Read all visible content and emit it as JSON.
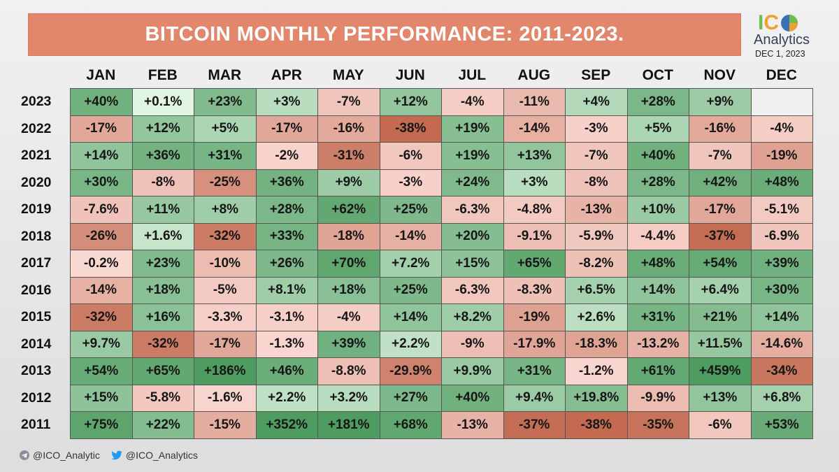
{
  "title": "BITCOIN MONTHLY PERFORMANCE: 2011-2023.",
  "logo": {
    "letters": [
      "I",
      "C",
      "O"
    ],
    "letter_colors": [
      "#6fbf4a",
      "#f0a030",
      "#3b6fb6"
    ],
    "name": "Analytics",
    "date": "DEC 1, 2023"
  },
  "footer": {
    "telegram": "@ICO_Analytic",
    "twitter": "@ICO_Analytics"
  },
  "colors": {
    "positive": "#1f8a3a",
    "negative": "#d9532b",
    "empty": "#f0f0f0"
  },
  "chart_data": {
    "type": "heatmap",
    "title": "BITCOIN MONTHLY PERFORMANCE: 2011-2023.",
    "columns": [
      "JAN",
      "FEB",
      "MAR",
      "APR",
      "MAY",
      "JUN",
      "JUL",
      "AUG",
      "SEP",
      "OCT",
      "NOV",
      "DEC"
    ],
    "rows": [
      {
        "year": "2023",
        "labels": [
          "+40%",
          "+0.1%",
          "+23%",
          "+3%",
          "-7%",
          "+12%",
          "-4%",
          "-11%",
          "+4%",
          "+28%",
          "+9%",
          ""
        ],
        "values": [
          40,
          0.1,
          23,
          3,
          -7,
          12,
          -4,
          -11,
          4,
          28,
          9,
          null
        ]
      },
      {
        "year": "2022",
        "labels": [
          "-17%",
          "+12%",
          "+5%",
          "-17%",
          "-16%",
          "-38%",
          "+19%",
          "-14%",
          "-3%",
          "+5%",
          "-16%",
          "-4%"
        ],
        "values": [
          -17,
          12,
          5,
          -17,
          -16,
          -38,
          19,
          -14,
          -3,
          5,
          -16,
          -4
        ]
      },
      {
        "year": "2021",
        "labels": [
          "+14%",
          "+36%",
          "+31%",
          "-2%",
          "-31%",
          "-6%",
          "+19%",
          "+13%",
          "-7%",
          "+40%",
          "-7%",
          "-19%"
        ],
        "values": [
          14,
          36,
          31,
          -2,
          -31,
          -6,
          19,
          13,
          -7,
          40,
          -7,
          -19
        ]
      },
      {
        "year": "2020",
        "labels": [
          "+30%",
          "-8%",
          "-25%",
          "+36%",
          "+9%",
          "-3%",
          "+24%",
          "+3%",
          "-8%",
          "+28%",
          "+42%",
          "+48%"
        ],
        "values": [
          30,
          -8,
          -25,
          36,
          9,
          -3,
          24,
          3,
          -8,
          28,
          42,
          48
        ]
      },
      {
        "year": "2019",
        "labels": [
          "-7.6%",
          "+11%",
          "+8%",
          "+28%",
          "+62%",
          "+25%",
          "-6.3%",
          "-4.8%",
          "-13%",
          "+10%",
          "-17%",
          "-5.1%"
        ],
        "values": [
          -7.6,
          11,
          8,
          28,
          62,
          25,
          -6.3,
          -4.8,
          -13,
          10,
          -17,
          -5.1
        ]
      },
      {
        "year": "2018",
        "labels": [
          "-26%",
          "+1.6%",
          "-32%",
          "+33%",
          "-18%",
          "-14%",
          "+20%",
          "-9.1%",
          "-5.9%",
          "-4.4%",
          "-37%",
          "-6.9%"
        ],
        "values": [
          -26,
          1.6,
          -32,
          33,
          -18,
          -14,
          20,
          -9.1,
          -5.9,
          -4.4,
          -37,
          -6.9
        ]
      },
      {
        "year": "2017",
        "labels": [
          "-0.2%",
          "+23%",
          "-10%",
          "+26%",
          "+70%",
          "+7.2%",
          "+15%",
          "+65%",
          "-8.2%",
          "+48%",
          "+54%",
          "+39%"
        ],
        "values": [
          -0.2,
          23,
          -10,
          26,
          70,
          7.2,
          15,
          65,
          -8.2,
          48,
          54,
          39
        ]
      },
      {
        "year": "2016",
        "labels": [
          "-14%",
          "+18%",
          "-5%",
          "+8.1%",
          "+18%",
          "+25%",
          "-6.3%",
          "-8.3%",
          "+6.5%",
          "+14%",
          "+6.4%",
          "+30%"
        ],
        "values": [
          -14,
          18,
          -5,
          8.1,
          18,
          25,
          -6.3,
          -8.3,
          6.5,
          14,
          6.4,
          30
        ]
      },
      {
        "year": "2015",
        "labels": [
          "-32%",
          "+16%",
          "-3.3%",
          "-3.1%",
          "-4%",
          "+14%",
          "+8.2%",
          "-19%",
          "+2.6%",
          "+31%",
          "+21%",
          "+14%"
        ],
        "values": [
          -32,
          16,
          -3.3,
          -3.1,
          -4,
          14,
          8.2,
          -19,
          2.6,
          31,
          21,
          14
        ]
      },
      {
        "year": "2014",
        "labels": [
          "+9.7%",
          "-32%",
          "-17%",
          "-1.3%",
          "+39%",
          "+2.2%",
          "-9%",
          "-17.9%",
          "-18.3%",
          "-13.2%",
          "+11.5%",
          "-14.6%"
        ],
        "values": [
          9.7,
          -32,
          -17,
          -1.3,
          39,
          2.2,
          -9,
          -17.9,
          -18.3,
          -13.2,
          11.5,
          -14.6
        ]
      },
      {
        "year": "2013",
        "labels": [
          "+54%",
          "+65%",
          "+186%",
          "+46%",
          "-8.8%",
          "-29.9%",
          "+9.9%",
          "+31%",
          "-1.2%",
          "+61%",
          "+459%",
          "-34%"
        ],
        "values": [
          54,
          65,
          186,
          46,
          -8.8,
          -29.9,
          9.9,
          31,
          -1.2,
          61,
          459,
          -34
        ]
      },
      {
        "year": "2012",
        "labels": [
          "+15%",
          "-5.8%",
          "-1.6%",
          "+2.2%",
          "+3.2%",
          "+27%",
          "+40%",
          "+9.4%",
          "+19.8%",
          "-9.9%",
          "+13%",
          "+6.8%"
        ],
        "values": [
          15,
          -5.8,
          -1.6,
          2.2,
          3.2,
          27,
          40,
          9.4,
          19.8,
          -9.9,
          13,
          6.8
        ]
      },
      {
        "year": "2011",
        "labels": [
          "+75%",
          "+22%",
          "-15%",
          "+352%",
          "+181%",
          "+68%",
          "-13%",
          "-37%",
          "-38%",
          "-35%",
          "-6%",
          "+53%"
        ],
        "values": [
          75,
          22,
          -15,
          352,
          181,
          68,
          -13,
          -37,
          -38,
          -35,
          -6,
          53
        ]
      }
    ]
  }
}
